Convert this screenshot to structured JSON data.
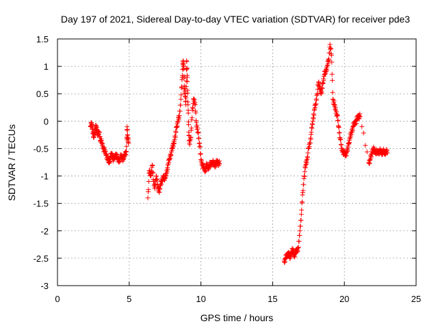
{
  "chart_data": {
    "type": "scatter",
    "title": "Day 197 of 2021, Sidereal Day-to-day VTEC variation (SDTVAR) for receiver pde3",
    "xlabel": "GPS time / hours",
    "ylabel": "SDTVAR / TECUs",
    "xlim": [
      0,
      25
    ],
    "ylim": [
      -3,
      1.5
    ],
    "x_ticks": [
      0,
      5,
      10,
      15,
      20,
      25
    ],
    "x_tick_labels": [
      "0",
      "5",
      "10",
      "15",
      "20",
      "25"
    ],
    "y_ticks": [
      -3,
      -2.5,
      -2,
      -1.5,
      -1,
      -0.5,
      0,
      0.5,
      1,
      1.5
    ],
    "y_tick_labels": [
      "-3",
      "-2.5",
      "-2",
      "-1.5",
      "-1",
      "-0.5",
      "0",
      "0.5",
      "1",
      "1.5"
    ],
    "grid": true,
    "marker": "+",
    "marker_color": "#ff0000",
    "series": [
      {
        "name": "SDTVAR",
        "x": [
          2.3,
          2.38,
          2.45,
          2.52,
          2.6,
          2.68,
          2.75,
          2.82,
          2.9,
          3.0,
          3.1,
          3.2,
          3.3,
          3.4,
          3.5,
          3.6,
          3.7,
          3.8,
          3.9,
          4.0,
          4.1,
          4.2,
          4.3,
          4.4,
          4.5,
          4.6,
          4.7,
          4.8,
          4.85,
          4.9,
          4.95,
          6.3,
          6.4,
          6.5,
          6.6,
          6.7,
          6.8,
          6.9,
          7.0,
          7.1,
          7.2,
          7.3,
          7.4,
          7.5,
          7.6,
          7.7,
          7.8,
          7.9,
          8.0,
          8.1,
          8.2,
          8.3,
          8.4,
          8.5,
          8.6,
          8.7,
          8.75,
          8.8,
          8.85,
          8.9,
          8.95,
          9.0,
          9.05,
          9.1,
          9.15,
          9.2,
          9.3,
          9.4,
          9.5,
          9.6,
          9.7,
          9.8,
          9.9,
          10.0,
          10.1,
          10.2,
          10.3,
          10.4,
          10.5,
          10.6,
          10.7,
          10.8,
          10.9,
          11.0,
          11.1,
          11.2,
          11.3,
          15.8,
          15.9,
          16.0,
          16.1,
          16.2,
          16.3,
          16.4,
          16.5,
          16.6,
          16.7,
          16.8,
          16.9,
          17.0,
          17.1,
          17.2,
          17.3,
          17.4,
          17.5,
          17.6,
          17.7,
          17.8,
          17.9,
          18.0,
          18.1,
          18.2,
          18.3,
          18.4,
          18.5,
          18.6,
          18.7,
          18.8,
          18.9,
          19.0,
          19.1,
          19.2,
          19.3,
          19.4,
          19.5,
          19.6,
          19.7,
          19.8,
          19.9,
          20.0,
          20.1,
          20.2,
          20.3,
          20.4,
          20.5,
          20.6,
          20.7,
          20.8,
          20.9,
          21.0,
          21.1,
          21.7,
          21.8,
          21.9,
          22.0,
          22.1,
          22.2,
          22.3,
          22.4,
          22.5,
          22.6,
          22.7,
          22.8,
          22.9,
          23.0
        ],
        "y": [
          -0.1,
          -0.05,
          -0.15,
          -0.3,
          -0.2,
          -0.1,
          -0.15,
          -0.25,
          -0.2,
          -0.35,
          -0.4,
          -0.5,
          -0.55,
          -0.6,
          -0.7,
          -0.75,
          -0.65,
          -0.6,
          -0.7,
          -0.65,
          -0.6,
          -0.7,
          -0.72,
          -0.65,
          -0.65,
          -0.7,
          -0.6,
          -0.55,
          -0.1,
          -0.3,
          -0.4,
          -1.4,
          -0.9,
          -1.0,
          -0.8,
          -1.1,
          -1.2,
          -1.0,
          -1.2,
          -1.3,
          -1.1,
          -1.1,
          -1.0,
          -1.05,
          -0.95,
          -0.8,
          -0.7,
          -0.6,
          -0.5,
          -0.4,
          -0.3,
          -0.1,
          0.0,
          0.1,
          0.4,
          0.8,
          1.1,
          1.0,
          0.6,
          0.5,
          0.3,
          1.1,
          0.8,
          0.3,
          -0.2,
          -0.4,
          -0.3,
          0.2,
          0.4,
          0.3,
          -0.1,
          -0.2,
          -0.4,
          -0.7,
          -0.8,
          -0.85,
          -0.9,
          -0.8,
          -0.85,
          -0.8,
          -0.78,
          -0.75,
          -0.78,
          -0.8,
          -0.75,
          -0.75,
          -0.78,
          -2.55,
          -2.5,
          -2.45,
          -2.4,
          -2.5,
          -2.4,
          -2.35,
          -2.45,
          -2.4,
          -2.35,
          -2.3,
          -2.0,
          -1.7,
          -1.3,
          -1.0,
          -0.8,
          -0.7,
          -0.5,
          -0.4,
          -0.2,
          0.0,
          0.2,
          0.3,
          0.5,
          0.7,
          0.6,
          0.5,
          0.7,
          0.85,
          0.9,
          1.0,
          1.1,
          1.4,
          1.2,
          0.4,
          0.3,
          0.2,
          0.1,
          -0.1,
          -0.3,
          -0.5,
          -0.55,
          -0.6,
          -0.6,
          -0.55,
          -0.4,
          -0.3,
          -0.2,
          -0.1,
          -0.05,
          0.0,
          0.05,
          0.1,
          0.08,
          -0.75,
          -0.7,
          -0.6,
          -0.5,
          -0.55,
          -0.55,
          -0.58,
          -0.55,
          -0.55,
          -0.58,
          -0.55,
          -0.58,
          -0.55,
          -0.58
        ]
      }
    ]
  }
}
